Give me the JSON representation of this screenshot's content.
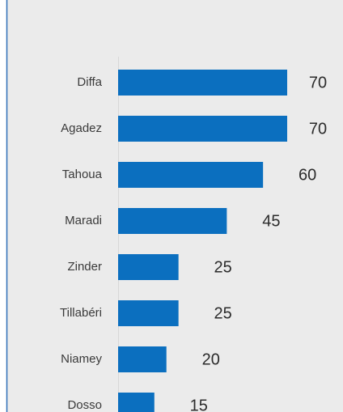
{
  "chart_data": {
    "type": "bar",
    "orientation": "horizontal",
    "categories": [
      "Diffa",
      "Agadez",
      "Tahoua",
      "Maradi",
      "Zinder",
      "Tillabéri",
      "Niamey",
      "Dosso"
    ],
    "values": [
      70,
      70,
      60,
      45,
      25,
      25,
      20,
      15
    ],
    "color": "#0b6fbf",
    "xlim": [
      0,
      70
    ]
  }
}
